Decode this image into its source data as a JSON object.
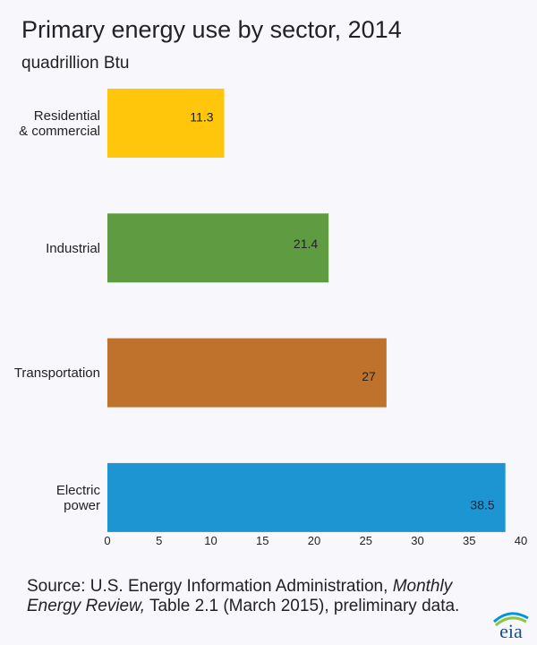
{
  "chart_data": {
    "type": "bar",
    "orientation": "horizontal",
    "title": "Primary energy use by sector, 2014",
    "subtitle": "quadrillion Btu",
    "categories": [
      [
        "Residential",
        "& commercial"
      ],
      [
        "Industrial"
      ],
      [
        "Transportation"
      ],
      [
        "Electric",
        "power"
      ]
    ],
    "values": [
      11.3,
      21.4,
      27,
      38.5
    ],
    "value_labels": [
      "11.3",
      "21.4",
      "27",
      "38.5"
    ],
    "colors": [
      "#ffc60b",
      "#5e9b41",
      "#be722b",
      "#1e95d3"
    ],
    "xlim": [
      0,
      40
    ],
    "xticks": [
      0,
      5,
      10,
      15,
      20,
      25,
      30,
      35,
      40
    ],
    "grid": false,
    "legend": "none"
  },
  "source": {
    "prefix": "Source: U.S. Energy Information Administration, ",
    "italic": "Monthly Energy Review,",
    "suffix": " Table 2.1 (March 2015), preliminary data."
  },
  "logo": {
    "text": "eia",
    "colors": [
      "#0096d7",
      "#8cc63f",
      "#1b4f8a"
    ]
  }
}
